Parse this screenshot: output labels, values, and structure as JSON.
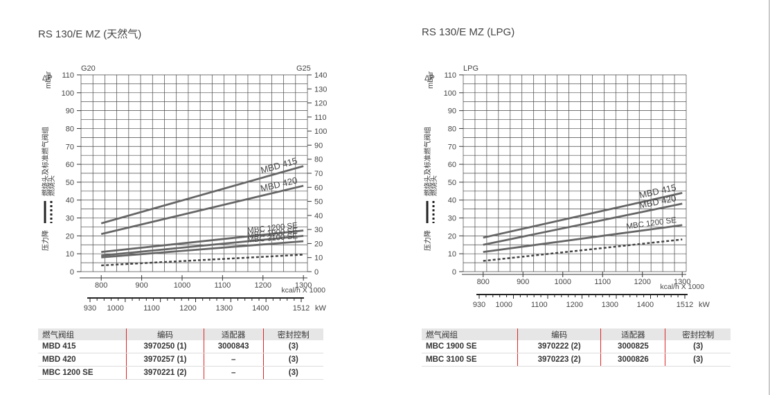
{
  "panels": [
    {
      "title": "RS 130/E MZ (天然气)",
      "axis": {
        "dp": "ΔP",
        "unit": "mbar",
        "gas_left": "G20",
        "gas_right": "G25",
        "yleft_ticks": [
          0,
          10,
          20,
          30,
          40,
          50,
          60,
          70,
          80,
          90,
          100,
          110
        ],
        "yright_ticks": [
          0,
          10,
          20,
          30,
          40,
          50,
          60,
          70,
          80,
          90,
          100,
          110,
          120,
          130,
          140
        ],
        "x_kcal_ticks": [
          800,
          900,
          1000,
          1100,
          1200,
          1300
        ],
        "x_kcal_unit": "kcal/h X 1000",
        "x_kw_labels": [
          "930",
          "1000",
          "1100",
          "1200",
          "1300",
          "1400",
          "1512"
        ],
        "x_kw_unit": "kW",
        "legend": [
          "燃烧头及标准燃气阀组",
          "燃烧头",
          "压力降"
        ]
      }
    },
    {
      "title": "RS 130/E MZ (LPG)",
      "axis": {
        "dp": "ΔP",
        "unit": "mbar",
        "gas_left": "LPG",
        "yleft_ticks": [
          0,
          10,
          20,
          30,
          40,
          50,
          60,
          70,
          80,
          90,
          100,
          110
        ],
        "x_kcal_ticks": [
          800,
          900,
          1000,
          1100,
          1200,
          1300
        ],
        "x_kcal_unit": "kcal/h X 1000",
        "x_kw_labels": [
          "930",
          "1000",
          "1100",
          "1200",
          "1300",
          "1400",
          "1512"
        ],
        "x_kw_unit": "kW",
        "legend": [
          "燃烧头及标准燃气阀组",
          "燃烧头",
          "压力降"
        ]
      }
    }
  ],
  "chart_data": [
    {
      "type": "line",
      "title": "RS 130/E MZ (天然气)",
      "xlabel": "kcal/h X 1000",
      "ylabel": "ΔP mbar",
      "xlim": [
        750,
        1310
      ],
      "ylim": [
        0,
        110
      ],
      "series": [
        {
          "name": "MBD 415",
          "x": [
            800,
            1300
          ],
          "y": [
            27,
            59
          ],
          "style": "solid"
        },
        {
          "name": "MBD 420",
          "x": [
            800,
            1300
          ],
          "y": [
            21,
            48
          ],
          "style": "solid"
        },
        {
          "name": "MBC 1200 SE",
          "x": [
            800,
            1300
          ],
          "y": [
            11,
            23
          ],
          "style": "solid"
        },
        {
          "name": "MBC 1900 SE",
          "x": [
            800,
            1300
          ],
          "y": [
            9,
            20
          ],
          "style": "solid"
        },
        {
          "name": "MBC 3100 SE",
          "x": [
            800,
            1300
          ],
          "y": [
            8,
            17
          ],
          "style": "solid"
        },
        {
          "name": "燃烧头",
          "x": [
            800,
            1300
          ],
          "y": [
            3.5,
            9.5
          ],
          "style": "dashed"
        }
      ]
    },
    {
      "type": "line",
      "title": "RS 130/E MZ (LPG)",
      "xlabel": "kcal/h X 1000",
      "ylabel": "ΔP mbar",
      "xlim": [
        750,
        1310
      ],
      "ylim": [
        0,
        110
      ],
      "series": [
        {
          "name": "MBD 415",
          "x": [
            800,
            1300
          ],
          "y": [
            19,
            44
          ],
          "style": "solid"
        },
        {
          "name": "MBD 420",
          "x": [
            800,
            1300
          ],
          "y": [
            15,
            38
          ],
          "style": "solid"
        },
        {
          "name": "MBC 1200 SE",
          "x": [
            800,
            1300
          ],
          "y": [
            11,
            26
          ],
          "style": "solid"
        },
        {
          "name": "燃烧头",
          "x": [
            800,
            1300
          ],
          "y": [
            6,
            18
          ],
          "style": "dashed"
        }
      ]
    }
  ],
  "tables": [
    {
      "headers": [
        "燃气阀组",
        "编码",
        "适配器",
        "密封控制"
      ],
      "rows": [
        [
          "MBD 415",
          "3970250 (1)",
          "3000843",
          "(3)"
        ],
        [
          "MBD 420",
          "3970257 (1)",
          "–",
          "(3)"
        ],
        [
          "MBC 1200 SE",
          "3970221 (2)",
          "–",
          "(3)"
        ]
      ]
    },
    {
      "headers": [
        "燃气阀组",
        "编码",
        "适配器",
        "密封控制"
      ],
      "rows": [
        [
          "MBC 1900 SE",
          "3970222 (2)",
          "3000825",
          "(3)"
        ],
        [
          "MBC 3100 SE",
          "3970223 (2)",
          "3000826",
          "(3)"
        ]
      ]
    }
  ],
  "colors": {
    "grid": "#444444",
    "curve": "#666666",
    "accent": "#d22222",
    "header_bg": "#e6e6e6"
  }
}
